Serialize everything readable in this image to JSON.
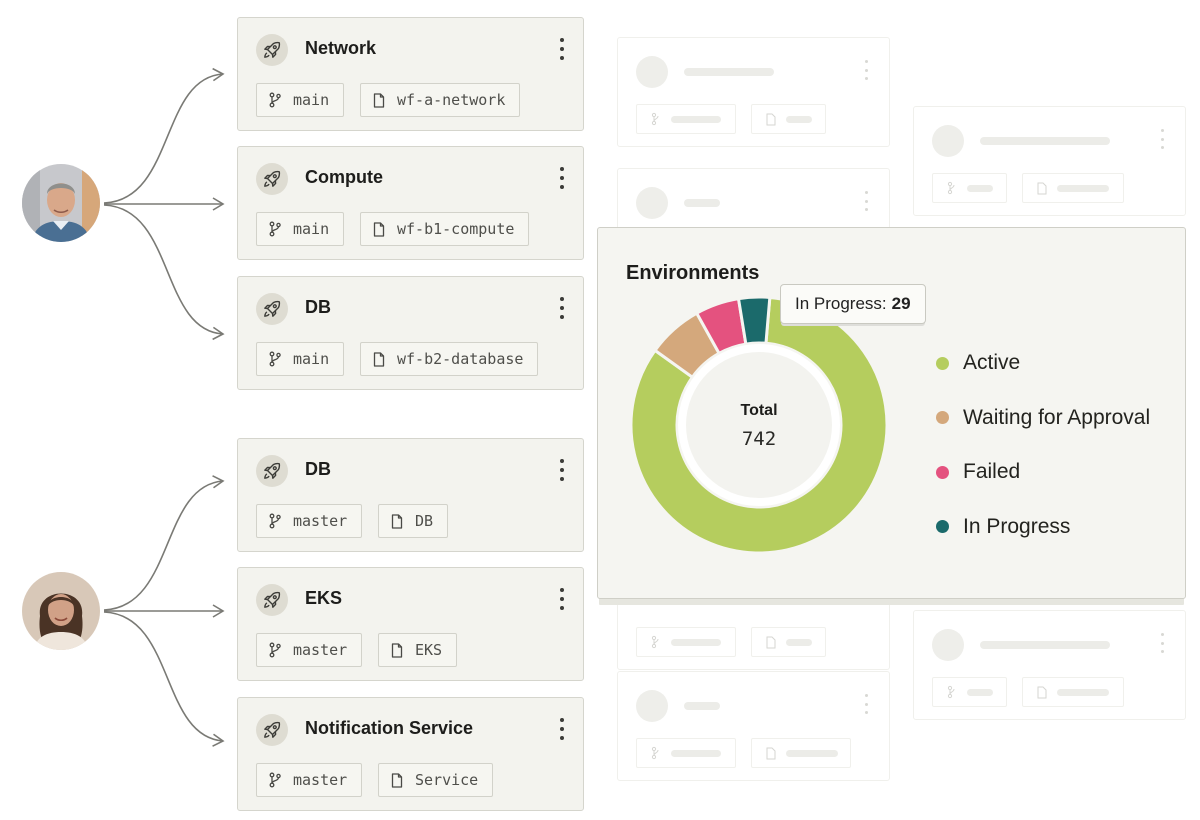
{
  "workflow_groups": [
    {
      "user": "avatar-man",
      "cards": [
        {
          "title": "Network",
          "branch": "main",
          "file": "wf-a-network"
        },
        {
          "title": "Compute",
          "branch": "main",
          "file": "wf-b1-compute"
        },
        {
          "title": "DB",
          "branch": "main",
          "file": "wf-b2-database"
        }
      ]
    },
    {
      "user": "avatar-woman",
      "cards": [
        {
          "title": "DB",
          "branch": "master",
          "file": "DB"
        },
        {
          "title": "EKS",
          "branch": "master",
          "file": "EKS"
        },
        {
          "title": "Notification Service",
          "branch": "master",
          "file": "Service"
        }
      ]
    }
  ],
  "environments": {
    "title": "Environments",
    "tooltip": {
      "label": "In Progress:",
      "value": "29"
    },
    "legend": [
      "Active",
      "Waiting for Approval",
      "Failed",
      "In Progress"
    ]
  },
  "chart_data": {
    "type": "pie",
    "title": "Environments",
    "center_label": "Total",
    "total": 742,
    "categories": [
      "Active",
      "Waiting for Approval",
      "Failed",
      "In Progress"
    ],
    "values": [
      620,
      52,
      41,
      29
    ],
    "colors": [
      "#b5cd5e",
      "#d4a87c",
      "#e4527f",
      "#1b6a6b"
    ]
  },
  "icons": {
    "card": "rocket-icon",
    "branch": "git-branch-icon",
    "file": "file-icon",
    "menu": "more-vertical-icon"
  }
}
